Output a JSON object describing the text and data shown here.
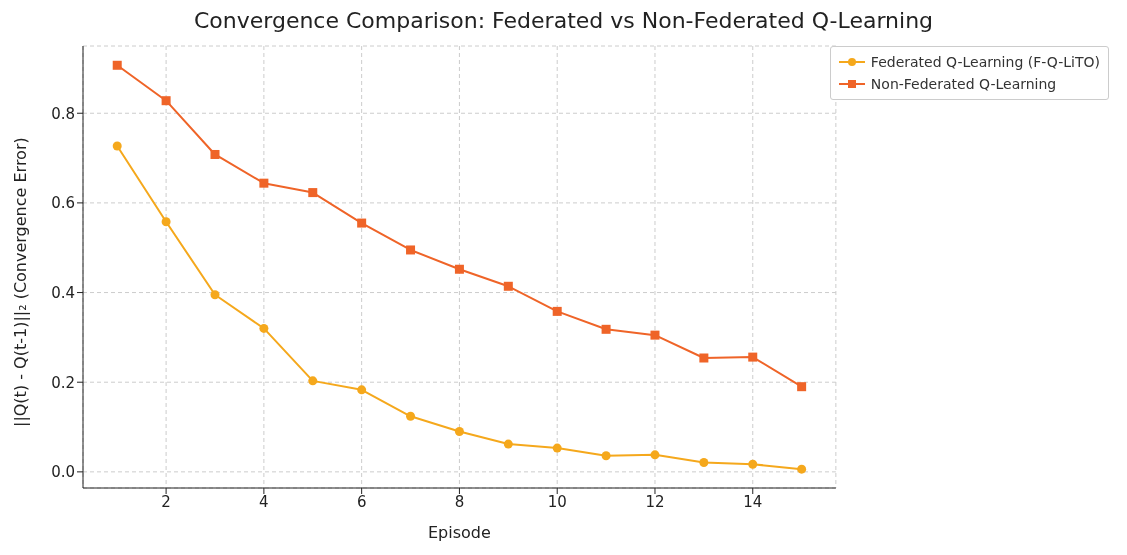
{
  "chart_data": {
    "type": "line",
    "title": "Convergence Comparison: Federated vs Non-Federated Q-Learning",
    "xlabel": "Episode",
    "ylabel": "||Q(t) - Q(t-1)||₂ (Convergence Error)",
    "x": [
      1,
      2,
      3,
      4,
      5,
      6,
      7,
      8,
      9,
      10,
      11,
      12,
      13,
      14,
      15
    ],
    "series": [
      {
        "name": "Federated Q-Learning (F-Q-LiTO)",
        "color": "#f5a81c",
        "marker": "circle",
        "values": [
          0.727,
          0.558,
          0.395,
          0.32,
          0.203,
          0.183,
          0.124,
          0.09,
          0.062,
          0.053,
          0.036,
          0.038,
          0.021,
          0.017,
          0.006
        ]
      },
      {
        "name": "Non-Federated Q-Learning",
        "color": "#ef6428",
        "marker": "square",
        "values": [
          0.907,
          0.828,
          0.708,
          0.644,
          0.623,
          0.555,
          0.495,
          0.452,
          0.414,
          0.358,
          0.318,
          0.305,
          0.254,
          0.256,
          0.19
        ]
      }
    ],
    "xlim": [
      0.3,
      15.7
    ],
    "xticks": [
      2,
      4,
      6,
      8,
      10,
      12,
      14
    ],
    "ylim": [
      -0.036,
      0.95
    ],
    "yticks": [
      {
        "value": 0,
        "label": "0.0"
      },
      0.2,
      0.4,
      0.6,
      0.8
    ],
    "grid": true,
    "legend": "top right",
    "line_style": "solid"
  }
}
